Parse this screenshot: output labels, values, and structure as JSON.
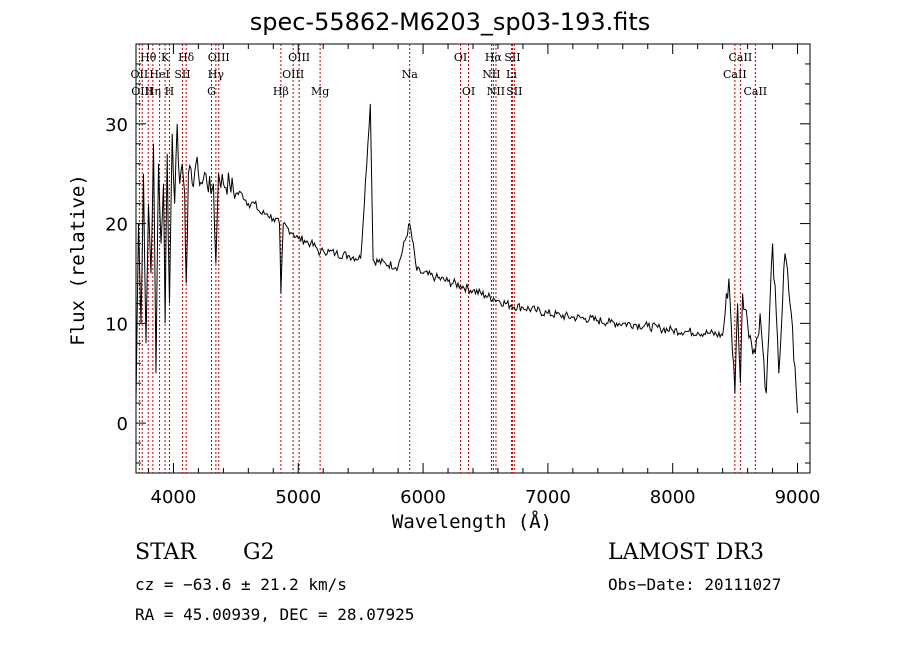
{
  "chart_data": {
    "type": "line",
    "title": "spec-55862-M6203_sp03-193.fits",
    "xlabel": "Wavelength (Å)",
    "ylabel": "Flux (relative)",
    "xlim": [
      3700,
      9100
    ],
    "ylim": [
      -5,
      38
    ],
    "xticks": [
      4000,
      5000,
      6000,
      7000,
      8000,
      9000
    ],
    "yticks": [
      0,
      10,
      20,
      30
    ],
    "series": [
      {
        "name": "flux",
        "x": [
          3700,
          3720,
          3740,
          3760,
          3780,
          3800,
          3820,
          3840,
          3860,
          3880,
          3900,
          3920,
          3933,
          3950,
          3968,
          3990,
          4010,
          4030,
          4050,
          4070,
          4090,
          4102,
          4120,
          4150,
          4180,
          4200,
          4230,
          4260,
          4300,
          4320,
          4340,
          4361,
          4400,
          4450,
          4500,
          4550,
          4600,
          4650,
          4700,
          4750,
          4800,
          4850,
          4861,
          4880,
          4920,
          4960,
          5000,
          5050,
          5100,
          5150,
          5175,
          5200,
          5250,
          5300,
          5400,
          5500,
          5577,
          5600,
          5700,
          5800,
          5893,
          5950,
          6000,
          6100,
          6200,
          6300,
          6400,
          6500,
          6563,
          6600,
          6700,
          6800,
          6900,
          7000,
          7100,
          7200,
          7300,
          7400,
          7500,
          7600,
          7700,
          7800,
          7900,
          8000,
          8100,
          8200,
          8300,
          8400,
          8450,
          8498,
          8520,
          8542,
          8560,
          8600,
          8662,
          8700,
          8750,
          8800,
          8850,
          8900,
          8950,
          9000
        ],
        "y": [
          2,
          20,
          10,
          25,
          8,
          22,
          15,
          28,
          5,
          26,
          18,
          24,
          10,
          27,
          12,
          29,
          22,
          30,
          24,
          26,
          23,
          14,
          25,
          24,
          26,
          25,
          24,
          25,
          23,
          24,
          16,
          25,
          24,
          24,
          23,
          23,
          22,
          22,
          21,
          21,
          20.5,
          20,
          13,
          20,
          19.5,
          19,
          18.5,
          18.3,
          18,
          17.5,
          17,
          17.3,
          17.2,
          17,
          16.8,
          16.5,
          32,
          16.3,
          16,
          15.7,
          20,
          15.3,
          15,
          14.6,
          14.2,
          13.8,
          13.3,
          12.8,
          12.5,
          12.3,
          11.8,
          11.6,
          11.3,
          11,
          10.8,
          10.6,
          10.5,
          10.3,
          10.1,
          10,
          9.9,
          9.7,
          9.5,
          9.3,
          9.2,
          9.1,
          9,
          8.8,
          14.5,
          3,
          12,
          4,
          13,
          10,
          7,
          11,
          3,
          18,
          5,
          17,
          11,
          1
        ]
      }
    ],
    "lines": [
      {
        "label": "Hθ",
        "wave": 3798,
        "row": 0
      },
      {
        "label": "OII",
        "wave": 3727,
        "row": 1
      },
      {
        "label": "OIII",
        "wave": 3750,
        "row": 2
      },
      {
        "label": "K",
        "wave": 3933,
        "row": 0
      },
      {
        "label": "HeI",
        "wave": 3889,
        "row": 1
      },
      {
        "label": "Hη",
        "wave": 3835,
        "row": 2
      },
      {
        "label": "Hδ",
        "wave": 4102,
        "row": 0
      },
      {
        "label": "SII",
        "wave": 4072,
        "row": 1
      },
      {
        "label": "H",
        "wave": 3968,
        "row": 2
      },
      {
        "label": "OIII",
        "wave": 4363,
        "row": 0
      },
      {
        "label": "Hγ",
        "wave": 4340,
        "row": 1
      },
      {
        "label": "G",
        "wave": 4305,
        "row": 2
      },
      {
        "label": "OIII",
        "wave": 5007,
        "row": 0
      },
      {
        "label": "OIII",
        "wave": 4959,
        "row": 1
      },
      {
        "label": "Hβ",
        "wave": 4861,
        "row": 2
      },
      {
        "label": "Mg",
        "wave": 5175,
        "row": 2
      },
      {
        "label": "Na",
        "wave": 5893,
        "row": 1
      },
      {
        "label": "OI",
        "wave": 6300,
        "row": 0
      },
      {
        "label": "OI",
        "wave": 6364,
        "row": 2
      },
      {
        "label": "Hα",
        "wave": 6563,
        "row": 0
      },
      {
        "label": "SII",
        "wave": 6716,
        "row": 0
      },
      {
        "label": "NII",
        "wave": 6548,
        "row": 1
      },
      {
        "label": "Li",
        "wave": 6708,
        "row": 1
      },
      {
        "label": "NII",
        "wave": 6584,
        "row": 2
      },
      {
        "label": "SII",
        "wave": 6731,
        "row": 2
      },
      {
        "label": "CaII",
        "wave": 8542,
        "row": 0
      },
      {
        "label": "CaII",
        "wave": 8498,
        "row": 1
      },
      {
        "label": "CaII",
        "wave": 8662,
        "row": 2
      }
    ]
  },
  "info": {
    "class": "STAR",
    "subclass": "G2",
    "survey": "LAMOST DR3",
    "cz": "cz = −63.6 ± 21.2 km/s",
    "obs_date": "Obs−Date: 20111027",
    "radec": "RA =  45.00939, DEC =  28.07925"
  }
}
